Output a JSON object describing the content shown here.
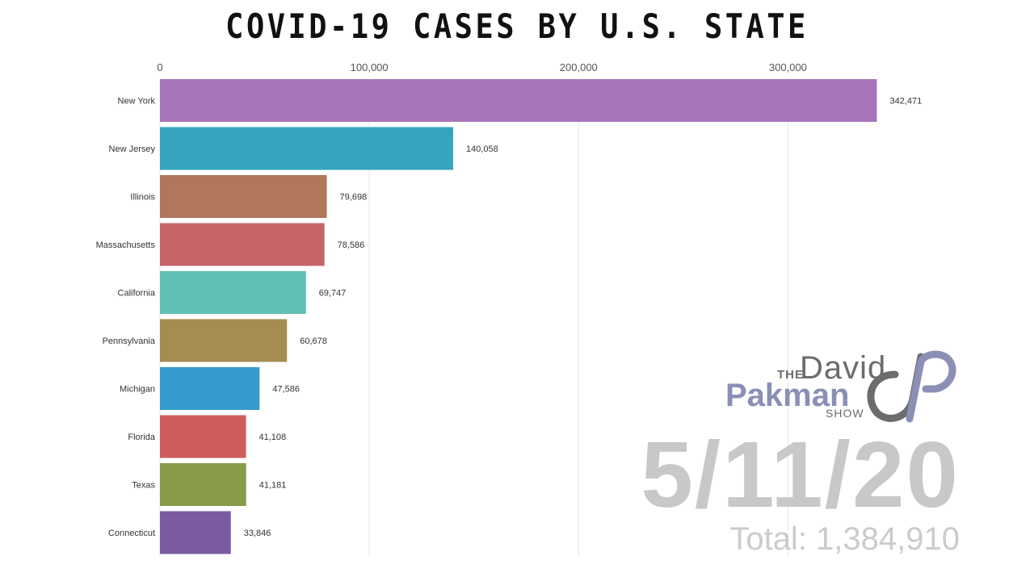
{
  "chart_data": {
    "type": "bar",
    "orientation": "horizontal",
    "title": "COVID-19 CASES BY U.S. STATE",
    "categories": [
      "New York",
      "New Jersey",
      "Illinois",
      "Massachusetts",
      "California",
      "Pennsylvania",
      "Michigan",
      "Florida",
      "Texas",
      "Connecticut"
    ],
    "values": [
      342471,
      140058,
      79698,
      78586,
      69747,
      60678,
      47586,
      41108,
      41181,
      33846
    ],
    "value_labels": [
      "342,471",
      "140,058",
      "79,698",
      "78,586",
      "69,747",
      "60,678",
      "47,586",
      "41,108",
      "41,181",
      "33,846"
    ],
    "colors": [
      "#a066b3",
      "#1f9ab8",
      "#a76848",
      "#bf545a",
      "#4fb9ab",
      "#9c7f3d",
      "#1e90c8",
      "#c94a48",
      "#7a9035",
      "#6b4897"
    ],
    "xlim": [
      0,
      350000
    ],
    "xticks": [
      0,
      100000,
      200000,
      300000
    ],
    "xtick_labels": [
      "0",
      "100,000",
      "200,000",
      "300,000"
    ],
    "axis_position": "top",
    "grid": true,
    "date": "5/11/20",
    "total_label": "Total: 1,384,910"
  },
  "logo": {
    "the": "THE",
    "david": "David",
    "pakman": "Pakman",
    "show": "SHOW",
    "color_primary": "#8a8fb5",
    "color_secondary": "#6c6c6c"
  }
}
